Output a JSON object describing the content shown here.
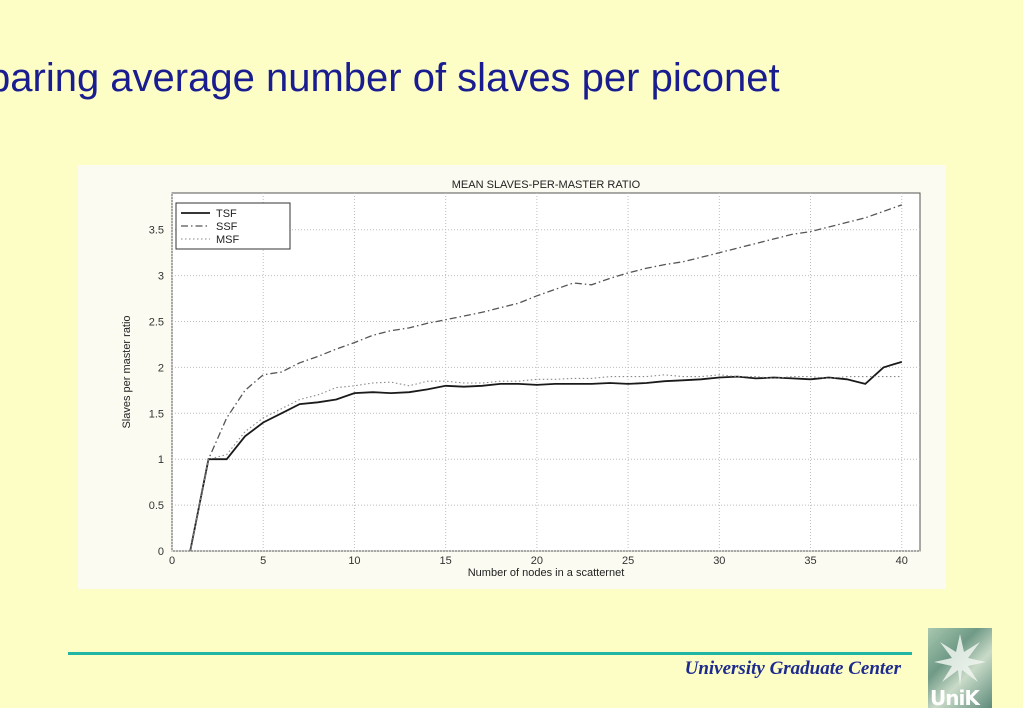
{
  "slide": {
    "title": "paring average number of slaves per piconet",
    "footer": "University Graduate Center",
    "logo_text": "UniK"
  },
  "colors": {
    "background": "#fdfdc6",
    "title": "#1a1d8f",
    "footer_rule": "#22b5a3",
    "footer_text": "#1d2b8f"
  },
  "chart_data": {
    "type": "line",
    "title": "MEAN SLAVES-PER-MASTER RATIO",
    "xlabel": "Number of nodes in a scatternet",
    "ylabel": "Slaves per master ratio",
    "xlim": [
      0,
      41
    ],
    "ylim": [
      0,
      3.9
    ],
    "xticks": [
      0,
      5,
      10,
      15,
      20,
      25,
      30,
      35,
      40
    ],
    "yticks": [
      0,
      0.5,
      1,
      1.5,
      2,
      2.5,
      3,
      3.5
    ],
    "xtick_labels": [
      "0",
      "5",
      "10",
      "15",
      "20",
      "25",
      "30",
      "35",
      "40"
    ],
    "ytick_labels": [
      "0",
      "0.5",
      "1",
      "1.5",
      "2",
      "2.5",
      "3",
      "3.5"
    ],
    "grid": true,
    "legend_position": "top-left",
    "x": [
      1,
      2,
      3,
      4,
      5,
      6,
      7,
      8,
      9,
      10,
      11,
      12,
      13,
      14,
      15,
      16,
      17,
      18,
      19,
      20,
      21,
      22,
      23,
      24,
      25,
      26,
      27,
      28,
      29,
      30,
      31,
      32,
      33,
      34,
      35,
      36,
      37,
      38,
      39,
      40
    ],
    "series": [
      {
        "name": "TSF",
        "style": "solid",
        "values": [
          0,
          1.0,
          1.0,
          1.25,
          1.4,
          1.5,
          1.6,
          1.62,
          1.65,
          1.72,
          1.73,
          1.72,
          1.73,
          1.76,
          1.8,
          1.79,
          1.8,
          1.82,
          1.82,
          1.81,
          1.82,
          1.82,
          1.82,
          1.83,
          1.82,
          1.83,
          1.85,
          1.86,
          1.87,
          1.89,
          1.9,
          1.88,
          1.89,
          1.88,
          1.87,
          1.89,
          1.87,
          1.82,
          2.0,
          2.06
        ]
      },
      {
        "name": "SSF",
        "style": "dashdot",
        "values": [
          0,
          1.0,
          1.45,
          1.75,
          1.92,
          1.95,
          2.05,
          2.12,
          2.2,
          2.27,
          2.35,
          2.4,
          2.43,
          2.48,
          2.52,
          2.56,
          2.6,
          2.65,
          2.7,
          2.78,
          2.85,
          2.92,
          2.9,
          2.97,
          3.03,
          3.08,
          3.12,
          3.15,
          3.2,
          3.25,
          3.3,
          3.35,
          3.4,
          3.45,
          3.48,
          3.53,
          3.58,
          3.63,
          3.7,
          3.77
        ]
      },
      {
        "name": "MSF",
        "style": "dotted",
        "values": [
          0,
          1.0,
          1.05,
          1.3,
          1.45,
          1.55,
          1.65,
          1.7,
          1.78,
          1.8,
          1.83,
          1.84,
          1.8,
          1.85,
          1.85,
          1.83,
          1.83,
          1.85,
          1.85,
          1.87,
          1.87,
          1.88,
          1.88,
          1.9,
          1.9,
          1.9,
          1.92,
          1.9,
          1.9,
          1.92,
          1.9,
          1.9,
          1.88,
          1.9,
          1.9,
          1.88,
          1.9,
          1.9,
          1.9,
          1.9
        ]
      }
    ]
  }
}
